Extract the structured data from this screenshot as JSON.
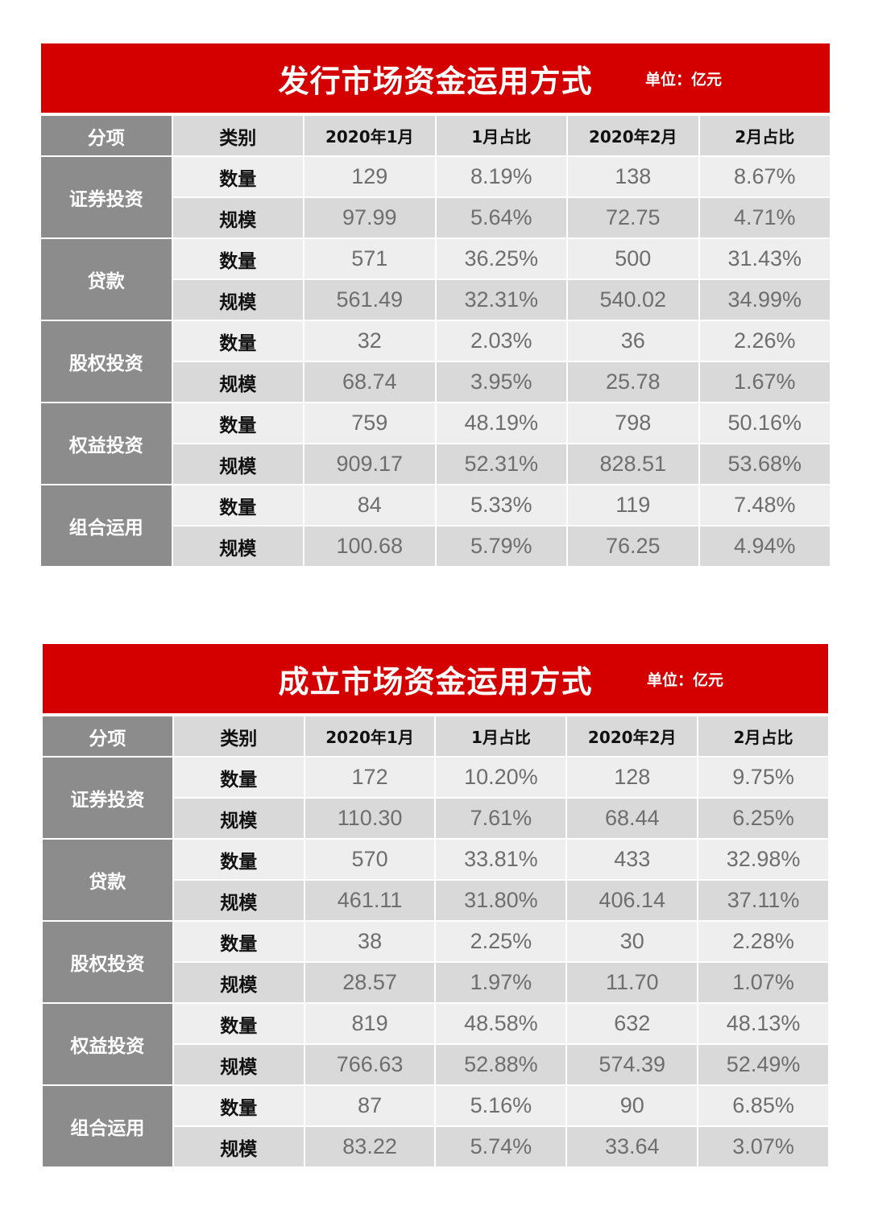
{
  "tables": [
    {
      "title": "发行市场资金运用方式",
      "unit": "单位：亿元",
      "headers": [
        "分项",
        "类别",
        "2020年1月",
        "1月占比",
        "2020年2月",
        "2月占比"
      ],
      "groups": [
        {
          "category": "证券投资",
          "rows": [
            {
              "type": "数量",
              "jan": "129",
              "jan_pct": "8.19%",
              "feb": "138",
              "feb_pct": "8.67%"
            },
            {
              "type": "规模",
              "jan": "97.99",
              "jan_pct": "5.64%",
              "feb": "72.75",
              "feb_pct": "4.71%"
            }
          ]
        },
        {
          "category": "贷款",
          "rows": [
            {
              "type": "数量",
              "jan": "571",
              "jan_pct": "36.25%",
              "feb": "500",
              "feb_pct": "31.43%"
            },
            {
              "type": "规模",
              "jan": "561.49",
              "jan_pct": "32.31%",
              "feb": "540.02",
              "feb_pct": "34.99%"
            }
          ]
        },
        {
          "category": "股权投资",
          "rows": [
            {
              "type": "数量",
              "jan": "32",
              "jan_pct": "2.03%",
              "feb": "36",
              "feb_pct": "2.26%"
            },
            {
              "type": "规模",
              "jan": "68.74",
              "jan_pct": "3.95%",
              "feb": "25.78",
              "feb_pct": "1.67%"
            }
          ]
        },
        {
          "category": "权益投资",
          "rows": [
            {
              "type": "数量",
              "jan": "759",
              "jan_pct": "48.19%",
              "feb": "798",
              "feb_pct": "50.16%"
            },
            {
              "type": "规模",
              "jan": "909.17",
              "jan_pct": "52.31%",
              "feb": "828.51",
              "feb_pct": "53.68%"
            }
          ]
        },
        {
          "category": "组合运用",
          "rows": [
            {
              "type": "数量",
              "jan": "84",
              "jan_pct": "5.33%",
              "feb": "119",
              "feb_pct": "7.48%"
            },
            {
              "type": "规模",
              "jan": "100.68",
              "jan_pct": "5.79%",
              "feb": "76.25",
              "feb_pct": "4.94%"
            }
          ]
        }
      ]
    },
    {
      "title": "成立市场资金运用方式",
      "unit": "单位：亿元",
      "headers": [
        "分项",
        "类别",
        "2020年1月",
        "1月占比",
        "2020年2月",
        "2月占比"
      ],
      "groups": [
        {
          "category": "证券投资",
          "rows": [
            {
              "type": "数量",
              "jan": "172",
              "jan_pct": "10.20%",
              "feb": "128",
              "feb_pct": "9.75%"
            },
            {
              "type": "规模",
              "jan": "110.30",
              "jan_pct": "7.61%",
              "feb": "68.44",
              "feb_pct": "6.25%"
            }
          ]
        },
        {
          "category": "贷款",
          "rows": [
            {
              "type": "数量",
              "jan": "570",
              "jan_pct": "33.81%",
              "feb": "433",
              "feb_pct": "32.98%"
            },
            {
              "type": "规模",
              "jan": "461.11",
              "jan_pct": "31.80%",
              "feb": "406.14",
              "feb_pct": "37.11%"
            }
          ]
        },
        {
          "category": "股权投资",
          "rows": [
            {
              "type": "数量",
              "jan": "38",
              "jan_pct": "2.25%",
              "feb": "30",
              "feb_pct": "2.28%"
            },
            {
              "type": "规模",
              "jan": "28.57",
              "jan_pct": "1.97%",
              "feb": "11.70",
              "feb_pct": "1.07%"
            }
          ]
        },
        {
          "category": "权益投资",
          "rows": [
            {
              "type": "数量",
              "jan": "819",
              "jan_pct": "48.58%",
              "feb": "632",
              "feb_pct": "48.13%"
            },
            {
              "type": "规模",
              "jan": "766.63",
              "jan_pct": "52.88%",
              "feb": "574.39",
              "feb_pct": "52.49%"
            }
          ]
        },
        {
          "category": "组合运用",
          "rows": [
            {
              "type": "数量",
              "jan": "87",
              "jan_pct": "5.16%",
              "feb": "90",
              "feb_pct": "6.85%"
            },
            {
              "type": "规模",
              "jan": "83.22",
              "jan_pct": "5.74%",
              "feb": "33.64",
              "feb_pct": "3.07%"
            }
          ]
        }
      ]
    }
  ]
}
